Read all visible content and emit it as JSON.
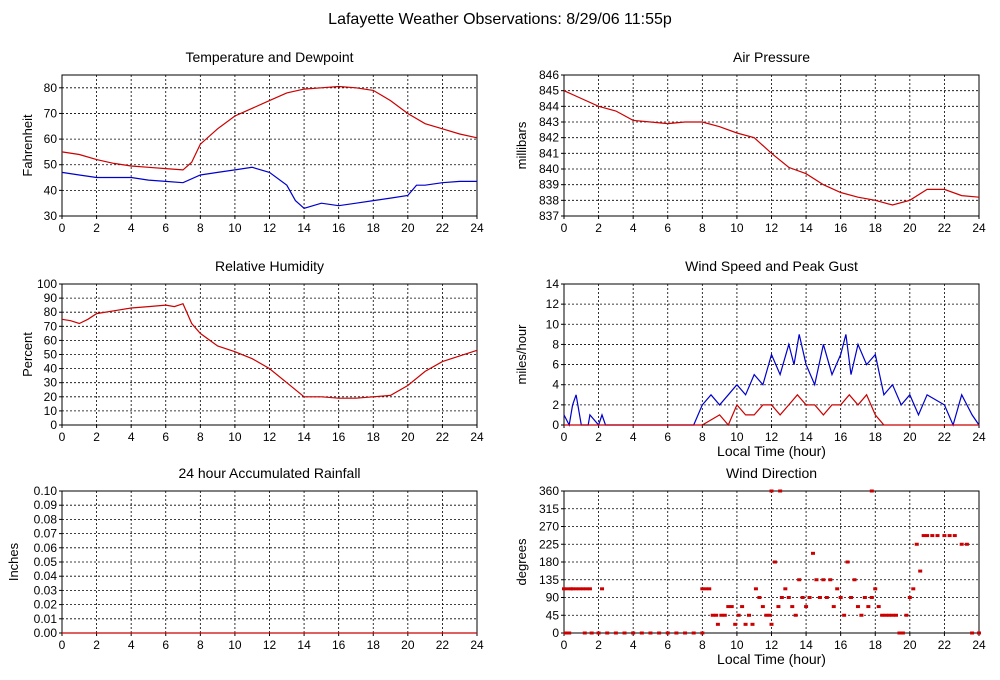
{
  "page_title": "Lafayette Weather Observations: 8/29/06 11:55p",
  "colors": {
    "temperature": "#cc0000",
    "dewpoint": "#0000cc",
    "grid": "#000000",
    "background": "#ffffff"
  },
  "chart_data": [
    {
      "id": "temp",
      "type": "line",
      "title": "Temperature and Dewpoint",
      "ylabel": "Fahrenheit",
      "xlabel": "",
      "xlim": [
        0,
        24
      ],
      "ylim": [
        30,
        85
      ],
      "xticks": [
        0,
        2,
        4,
        6,
        8,
        10,
        12,
        14,
        16,
        18,
        20,
        22,
        24
      ],
      "yticks": [
        30,
        40,
        50,
        60,
        70,
        80
      ],
      "grid": true,
      "series": [
        {
          "color": "#cc0000",
          "x": [
            0,
            1,
            2,
            3,
            4,
            5,
            6,
            7,
            7.5,
            8,
            9,
            10,
            11,
            12,
            13,
            14,
            15,
            16,
            17,
            18,
            19,
            20,
            21,
            22,
            23,
            24
          ],
          "values": [
            55,
            54,
            52,
            50.5,
            49.5,
            49,
            48.5,
            48,
            51,
            58,
            64,
            69,
            72,
            75,
            78,
            79.5,
            80,
            80.5,
            80,
            79,
            75,
            70,
            66,
            64,
            62,
            60.5
          ]
        },
        {
          "color": "#0000cc",
          "x": [
            0,
            1,
            2,
            3,
            4,
            5,
            6,
            7,
            8,
            9,
            10,
            11,
            12,
            13,
            13.5,
            14,
            15,
            16,
            17,
            18,
            19,
            20,
            20.5,
            21,
            22,
            23,
            24
          ],
          "values": [
            47,
            46,
            45,
            45,
            45,
            44,
            43.5,
            43,
            46,
            47,
            48,
            49,
            47,
            42,
            36,
            33,
            35,
            34,
            35,
            36,
            37,
            38,
            42,
            42,
            43,
            43.5,
            43.5
          ]
        }
      ]
    },
    {
      "id": "press",
      "type": "line",
      "title": "Air Pressure",
      "ylabel": "millibars",
      "xlabel": "",
      "xlim": [
        0,
        24
      ],
      "ylim": [
        837,
        846
      ],
      "xticks": [
        0,
        2,
        4,
        6,
        8,
        10,
        12,
        14,
        16,
        18,
        20,
        22,
        24
      ],
      "yticks": [
        837,
        838,
        839,
        840,
        841,
        842,
        843,
        844,
        845,
        846
      ],
      "grid": true,
      "series": [
        {
          "color": "#cc0000",
          "x": [
            0,
            1,
            2,
            3,
            4,
            5,
            6,
            7,
            8,
            9,
            10,
            11,
            12,
            13,
            14,
            15,
            16,
            17,
            18,
            19,
            20,
            21,
            22,
            23,
            24
          ],
          "values": [
            845,
            844.5,
            844,
            843.7,
            843.1,
            843,
            842.9,
            843,
            843,
            842.7,
            842.3,
            842,
            841,
            840.1,
            839.7,
            839,
            838.5,
            838.2,
            838,
            837.7,
            838,
            838.7,
            838.7,
            838.3,
            838.2
          ]
        }
      ]
    },
    {
      "id": "rh",
      "type": "line",
      "title": "Relative Humidity",
      "ylabel": "Percent",
      "xlabel": "",
      "xlim": [
        0,
        24
      ],
      "ylim": [
        0,
        100
      ],
      "xticks": [
        0,
        2,
        4,
        6,
        8,
        10,
        12,
        14,
        16,
        18,
        20,
        22,
        24
      ],
      "yticks": [
        0,
        10,
        20,
        30,
        40,
        50,
        60,
        70,
        80,
        90,
        100
      ],
      "grid": true,
      "series": [
        {
          "color": "#cc0000",
          "x": [
            0,
            0.5,
            1,
            1.5,
            2,
            3,
            4,
            5,
            6,
            6.5,
            7,
            7.5,
            8,
            9,
            10,
            11,
            12,
            13,
            14,
            15,
            16,
            17,
            18,
            19,
            20,
            21,
            22,
            23,
            24
          ],
          "values": [
            75,
            74,
            72,
            75,
            79,
            81,
            83,
            84,
            85,
            84,
            86,
            72,
            65,
            56,
            52,
            47,
            40,
            30,
            20,
            20,
            19,
            19,
            20,
            21,
            28,
            38,
            45,
            49,
            53
          ]
        }
      ]
    },
    {
      "id": "wind",
      "type": "line",
      "title": "Wind Speed and Peak Gust",
      "ylabel": "miles/hour",
      "xlabel": "Local Time (hour)",
      "xlim": [
        0,
        24
      ],
      "ylim": [
        0,
        14
      ],
      "xticks": [
        0,
        2,
        4,
        6,
        8,
        10,
        12,
        14,
        16,
        18,
        20,
        22,
        24
      ],
      "yticks": [
        0,
        2,
        4,
        6,
        8,
        10,
        12,
        14
      ],
      "grid": true,
      "series": [
        {
          "color": "#0000cc",
          "x": [
            0,
            0.3,
            0.5,
            0.7,
            1,
            1.4,
            1.5,
            2,
            2.2,
            2.4,
            7.5,
            8,
            8.5,
            9,
            9.5,
            10,
            10.5,
            11,
            11.5,
            12,
            12.5,
            13,
            13.3,
            13.6,
            14,
            14.5,
            15,
            15.5,
            16,
            16.3,
            16.6,
            17,
            17.5,
            18,
            18.5,
            19,
            19.5,
            20,
            20.5,
            21,
            22,
            22.5,
            23,
            23.3,
            23.6,
            24
          ],
          "values": [
            1,
            0,
            2,
            3,
            0,
            0,
            1,
            0,
            1,
            0,
            0,
            2,
            3,
            2,
            3,
            4,
            3,
            5,
            4,
            7,
            5,
            8,
            6,
            9,
            6,
            4,
            8,
            5,
            7,
            9,
            5,
            8,
            6,
            7,
            3,
            4,
            2,
            3,
            1,
            3,
            2,
            0,
            3,
            2,
            1,
            0
          ]
        },
        {
          "color": "#cc0000",
          "x": [
            0,
            7.5,
            8,
            9,
            9.5,
            10,
            10.5,
            11,
            11.5,
            12,
            12.5,
            13,
            13.5,
            14,
            14.5,
            15,
            15.5,
            16,
            16.5,
            17,
            17.5,
            18,
            18.5,
            19,
            24
          ],
          "values": [
            0,
            0,
            0,
            1,
            0,
            2,
            1,
            1,
            2,
            2,
            1,
            2,
            3,
            2,
            2,
            1,
            2,
            2,
            3,
            2,
            3,
            1,
            0,
            0,
            0
          ]
        }
      ]
    },
    {
      "id": "rain",
      "type": "line",
      "title": "24 hour Accumulated Rainfall",
      "ylabel": "Inches",
      "xlabel": "",
      "xlim": [
        0,
        24
      ],
      "ylim": [
        0,
        0.1
      ],
      "xticks": [
        0,
        2,
        4,
        6,
        8,
        10,
        12,
        14,
        16,
        18,
        20,
        22,
        24
      ],
      "yticks": [
        0.0,
        0.01,
        0.02,
        0.03,
        0.04,
        0.05,
        0.06,
        0.07,
        0.08,
        0.09,
        0.1
      ],
      "ytick_labels": [
        "0.00",
        "0.01",
        "0.02",
        "0.03",
        "0.04",
        "0.05",
        "0.06",
        "0.07",
        "0.08",
        "0.09",
        "0.10"
      ],
      "grid": true,
      "series": [
        {
          "color": "#cc0000",
          "x": [
            0,
            24
          ],
          "values": [
            0,
            0
          ]
        }
      ]
    },
    {
      "id": "wdir",
      "type": "scatter",
      "title": "Wind Direction",
      "ylabel": "degrees",
      "xlabel": "Local Time (hour)",
      "xlim": [
        0,
        24
      ],
      "ylim": [
        0,
        360
      ],
      "xticks": [
        0,
        2,
        4,
        6,
        8,
        10,
        12,
        14,
        16,
        18,
        20,
        22,
        24
      ],
      "yticks": [
        0,
        45,
        90,
        135,
        180,
        225,
        270,
        315,
        360
      ],
      "grid": true,
      "series": [
        {
          "color": "#cc0000",
          "x": [
            0,
            0.2,
            0.4,
            0.5,
            0.7,
            0.9,
            1.1,
            1.3,
            1.5,
            2.2,
            1.2,
            1.6,
            2,
            2.5,
            3,
            3.5,
            4,
            4.5,
            5,
            5.5,
            6,
            6.5,
            7,
            7.5,
            8,
            8,
            8.2,
            8.4,
            8.6,
            8.8,
            8.9,
            9.1,
            9.3,
            9.5,
            9.7,
            9.9,
            10.1,
            10.3,
            10.5,
            10.7,
            10.9,
            11.1,
            11.3,
            11.5,
            11.7,
            11.9,
            12,
            12.2,
            12.4,
            12.6,
            12.8,
            13,
            13.2,
            13.4,
            13.6,
            13.8,
            14,
            14.2,
            14.4,
            14.6,
            14.8,
            15,
            15.2,
            15.4,
            15.6,
            15.8,
            16,
            16.2,
            16.4,
            16.6,
            16.8,
            17,
            17.2,
            17.4,
            17.6,
            17.8,
            18,
            18.2,
            18.4,
            18.6,
            18.8,
            19,
            19.2,
            19.4,
            19.6,
            19.8,
            20,
            20.2,
            20.4,
            20.6,
            20.8,
            21,
            21.3,
            21.6,
            22,
            22.3,
            22.6,
            23,
            23.3,
            23.6,
            24,
            0.1,
            0.3,
            12,
            12.5,
            17.8
          ],
          "values": [
            112,
            112,
            112,
            112,
            112,
            112,
            112,
            112,
            112,
            112,
            0,
            0,
            0,
            0,
            0,
            0,
            0,
            0,
            0,
            0,
            0,
            0,
            0,
            0,
            0,
            112,
            112,
            112,
            45,
            45,
            22,
            45,
            45,
            67,
            67,
            22,
            45,
            67,
            22,
            45,
            22,
            112,
            90,
            67,
            45,
            45,
            22,
            180,
            67,
            90,
            112,
            90,
            67,
            45,
            135,
            90,
            67,
            90,
            202,
            135,
            90,
            135,
            90,
            135,
            67,
            112,
            90,
            45,
            180,
            90,
            135,
            67,
            45,
            90,
            67,
            90,
            112,
            67,
            45,
            45,
            45,
            45,
            45,
            0,
            0,
            45,
            90,
            112,
            225,
            157,
            247,
            247,
            247,
            247,
            247,
            247,
            247,
            225,
            225,
            0,
            0,
            0,
            0,
            360,
            360,
            360
          ]
        }
      ]
    }
  ]
}
